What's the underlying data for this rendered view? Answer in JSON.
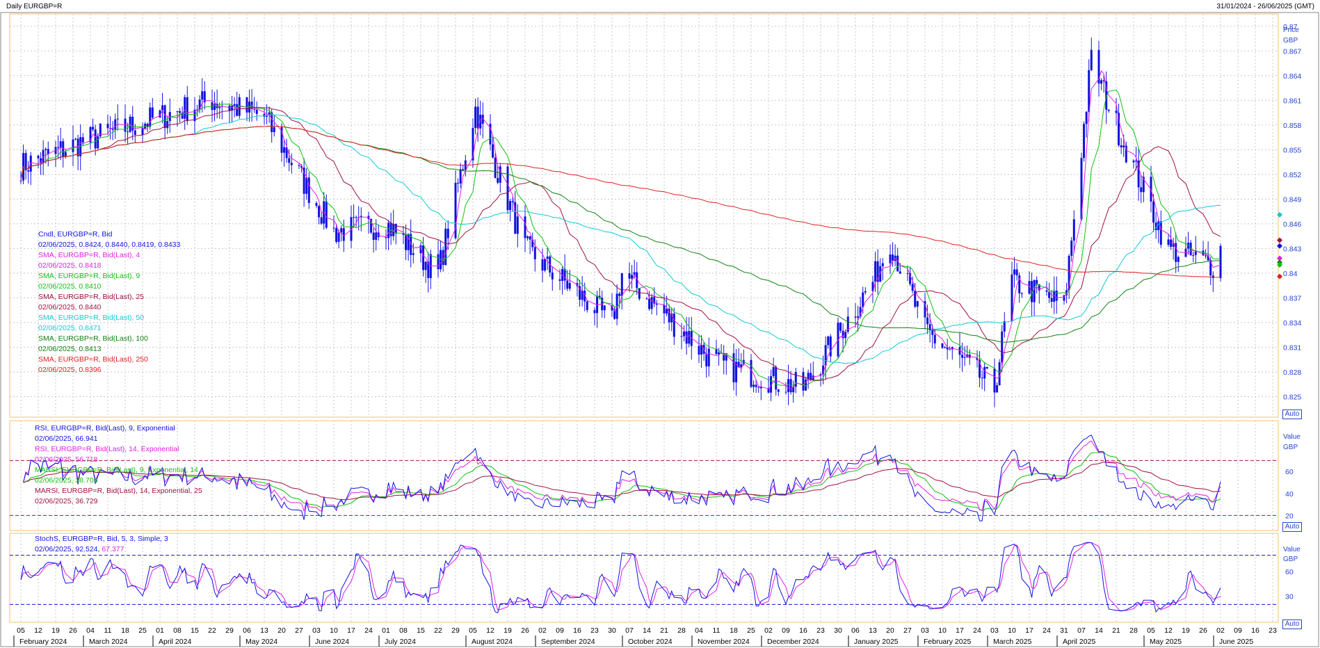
{
  "header": {
    "title": "Daily EURGBP=R",
    "range": "31/01/2024 - 26/06/2025 (GMT)"
  },
  "colors": {
    "candle": "#1010e0",
    "sma4": "#e020e0",
    "sma9": "#10c010",
    "sma25": "#a01040",
    "sma50": "#10c8d8",
    "sma100": "#108010",
    "sma250": "#e02020",
    "grid": "#c8c8c8",
    "axis_text": "#2244cc",
    "frame": "#f0c070"
  },
  "price_panel": {
    "axis_title_1": "Price",
    "axis_title_2": "GBP",
    "auto_label": "Auto",
    "ticks": [
      "0.87",
      "0.867",
      "0.864",
      "0.861",
      "0.858",
      "0.855",
      "0.852",
      "0.849",
      "0.846",
      "0.843",
      "0.84",
      "0.837",
      "0.834",
      "0.831",
      "0.828",
      "0.825"
    ],
    "legend": [
      {
        "label": "Cndl, EURGBP=R, Bid",
        "value": "02/06/2025, 0.8424, 0.8440, 0.8419, 0.8433",
        "color": "#1010e0"
      },
      {
        "label": "SMA, EURGBP=R, Bid(Last),  4",
        "value": "02/06/2025, 0.8418",
        "color": "#e020e0"
      },
      {
        "label": "SMA, EURGBP=R, Bid(Last),  9",
        "value": "02/06/2025, 0.8410",
        "color": "#10c010"
      },
      {
        "label": "SMA, EURGBP=R, Bid(Last),  25",
        "value": "02/06/2025, 0.8440",
        "color": "#a01040"
      },
      {
        "label": "SMA, EURGBP=R, Bid(Last),  50",
        "value": "02/06/2025, 0.8471",
        "color": "#10c8d8"
      },
      {
        "label": "SMA, EURGBP=R, Bid(Last),  100",
        "value": "02/06/2025, 0.8413",
        "color": "#108010"
      },
      {
        "label": "SMA, EURGBP=R, Bid(Last),  250",
        "value": "02/06/2025, 0.8396",
        "color": "#e02020"
      }
    ]
  },
  "rsi_panel": {
    "axis_title_1": "Value",
    "axis_title_2": "GBP",
    "auto_label": "Auto",
    "ticks": [
      "60",
      "40",
      "20"
    ],
    "legend": [
      {
        "label": "RSI, EURGBP=R, Bid(Last),  9, Exponential",
        "value": "02/06/2025, 66.941",
        "color": "#1010e0"
      },
      {
        "label": "RSI, EURGBP=R, Bid(Last),  14, Exponential",
        "value": "02/06/2025, 56.718",
        "color": "#e020e0"
      },
      {
        "label": "MARSI, EURGBP=R, Bid(Last),  9, Exponential, 14",
        "value": "02/06/2025, 38.705",
        "color": "#10c010"
      },
      {
        "label": "MARSI, EURGBP=R, Bid(Last),  14, Exponential, 25",
        "value": "02/06/2025, 36.729",
        "color": "#a01040"
      }
    ]
  },
  "stoch_panel": {
    "axis_title_1": "Value",
    "axis_title_2": "GBP",
    "auto_label": "Auto",
    "ticks": [
      "60",
      "30"
    ],
    "legend_label": "StochS, EURGBP=R, Bid,  5, 3, Simple, 3",
    "legend_value_a": "02/06/2025, 92.524,",
    "legend_value_b": "67.377"
  },
  "x_axis": {
    "days": [
      "05",
      "12",
      "19",
      "26",
      "04",
      "11",
      "18",
      "25",
      "01",
      "08",
      "15",
      "22",
      "29",
      "06",
      "13",
      "20",
      "27",
      "03",
      "10",
      "17",
      "24",
      "01",
      "08",
      "15",
      "22",
      "29",
      "05",
      "12",
      "19",
      "26",
      "02",
      "09",
      "16",
      "23",
      "30",
      "07",
      "14",
      "21",
      "28",
      "04",
      "11",
      "18",
      "25",
      "02",
      "09",
      "16",
      "23",
      "30",
      "06",
      "13",
      "20",
      "27",
      "03",
      "10",
      "17",
      "24",
      "03",
      "10",
      "17",
      "24",
      "31",
      "07",
      "14",
      "21",
      "28",
      "05",
      "12",
      "19",
      "26",
      "02",
      "09",
      "16",
      "23"
    ],
    "months": [
      "February 2024",
      "March 2024",
      "April 2024",
      "May 2024",
      "June 2024",
      "July 2024",
      "August 2024",
      "September 2024",
      "October 2024",
      "November 2024",
      "December 2024",
      "January 2025",
      "February 2025",
      "March 2025",
      "April 2025",
      "May 2025",
      "June 2025"
    ]
  },
  "chart_data": {
    "type": "line",
    "title": "Daily EURGBP=R",
    "date_range": "31/01/2024 - 26/06/2025",
    "y_unit": "GBP",
    "price_ylim": [
      0.8225,
      0.8715
    ],
    "key_points": [
      {
        "date": "2024-02-05",
        "close": 0.853
      },
      {
        "date": "2024-03-01",
        "close": 0.856
      },
      {
        "date": "2024-04-22",
        "close": 0.861
      },
      {
        "date": "2024-05-13",
        "close": 0.859
      },
      {
        "date": "2024-06-10",
        "close": 0.845
      },
      {
        "date": "2024-07-01",
        "close": 0.846
      },
      {
        "date": "2024-07-22",
        "close": 0.84
      },
      {
        "date": "2024-08-06",
        "close": 0.86
      },
      {
        "date": "2024-08-26",
        "close": 0.843
      },
      {
        "date": "2024-09-30",
        "close": 0.834
      },
      {
        "date": "2024-10-04",
        "close": 0.84
      },
      {
        "date": "2024-11-11",
        "close": 0.829
      },
      {
        "date": "2024-12-16",
        "close": 0.826
      },
      {
        "date": "2025-01-13",
        "close": 0.839
      },
      {
        "date": "2025-01-20",
        "close": 0.844
      },
      {
        "date": "2025-02-03",
        "close": 0.833
      },
      {
        "date": "2025-03-03",
        "close": 0.826
      },
      {
        "date": "2025-03-10",
        "close": 0.839
      },
      {
        "date": "2025-03-31",
        "close": 0.836
      },
      {
        "date": "2025-04-11",
        "close": 0.866
      },
      {
        "date": "2025-04-21",
        "close": 0.858
      },
      {
        "date": "2025-05-12",
        "close": 0.843
      },
      {
        "date": "2025-05-30",
        "close": 0.841
      },
      {
        "date": "2025-06-02",
        "close": 0.8433
      }
    ],
    "last_values": {
      "open": 0.8424,
      "high": 0.844,
      "low": 0.8419,
      "close": 0.8433,
      "sma4": 0.8418,
      "sma9": 0.841,
      "sma25": 0.844,
      "sma50": 0.8471,
      "sma100": 0.8413,
      "sma250": 0.8396
    },
    "rsi_last": {
      "rsi9": 66.941,
      "rsi14": 56.718,
      "marsi9": 38.705,
      "marsi14": 36.729
    },
    "stoch_last": {
      "k": 92.524,
      "d": 67.377
    }
  }
}
